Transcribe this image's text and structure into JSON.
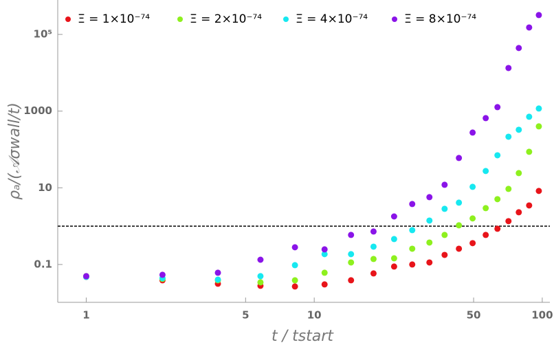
{
  "chart_data": {
    "type": "scatter",
    "x_label": "t / tstart",
    "y_label": "ρₐ/(𝒜σwall/t)",
    "xscale": "log",
    "yscale": "log",
    "xlim": [
      0.75,
      108
    ],
    "ylim": [
      0.0103,
      790000
    ],
    "xticks": [
      1,
      5,
      10,
      50,
      100
    ],
    "yticks": [
      0.1,
      10,
      1000,
      {
        "value": 100000,
        "label": "10⁵"
      }
    ],
    "hline": 1,
    "x": [
      1,
      2.16,
      3.78,
      5.81,
      8.23,
      11.1,
      14.5,
      18.2,
      22.4,
      26.9,
      32.0,
      37.3,
      43.1,
      49.5,
      56.5,
      63.6,
      71.1,
      78.9,
      87.6,
      96.6
    ],
    "series": [
      {
        "name": "Ξ = 1×10⁻⁷⁴",
        "color": "#e8141a",
        "values": [
          0.0476,
          0.0387,
          0.0315,
          0.0278,
          0.0267,
          0.0302,
          0.0387,
          0.0585,
          0.0883,
          0.1,
          0.113,
          0.178,
          0.258,
          0.36,
          0.59,
          0.855,
          1.35,
          2.3,
          3.47,
          8.28
        ]
      },
      {
        "name": "Ξ = 2×10⁻⁷⁴",
        "color": "#8ef01e",
        "values": [
          0.0496,
          0.042,
          0.0387,
          0.0342,
          0.0387,
          0.061,
          0.113,
          0.139,
          0.145,
          0.258,
          0.374,
          0.59,
          1.05,
          1.59,
          2.95,
          5.05,
          9.36,
          24.2,
          86.9,
          400
        ]
      },
      {
        "name": "Ξ = 4×10⁻⁷⁴",
        "color": "#17e8f0",
        "values": [
          0.0476,
          0.0439,
          0.0403,
          0.0496,
          0.096,
          0.186,
          0.186,
          0.292,
          0.46,
          0.787,
          1.4,
          2.83,
          4.1,
          10.6,
          27.4,
          70.6,
          215,
          326,
          713,
          1170
        ]
      },
      {
        "name": "Ξ = 8×10⁻⁷⁴",
        "color": "#8a14e8",
        "values": [
          0.0496,
          0.0538,
          0.061,
          0.133,
          0.281,
          0.248,
          0.59,
          0.724,
          1.79,
          3.78,
          5.71,
          12.0,
          60.0,
          276,
          656,
          1270,
          13300,
          44200,
          152000,
          320000
        ]
      }
    ]
  }
}
